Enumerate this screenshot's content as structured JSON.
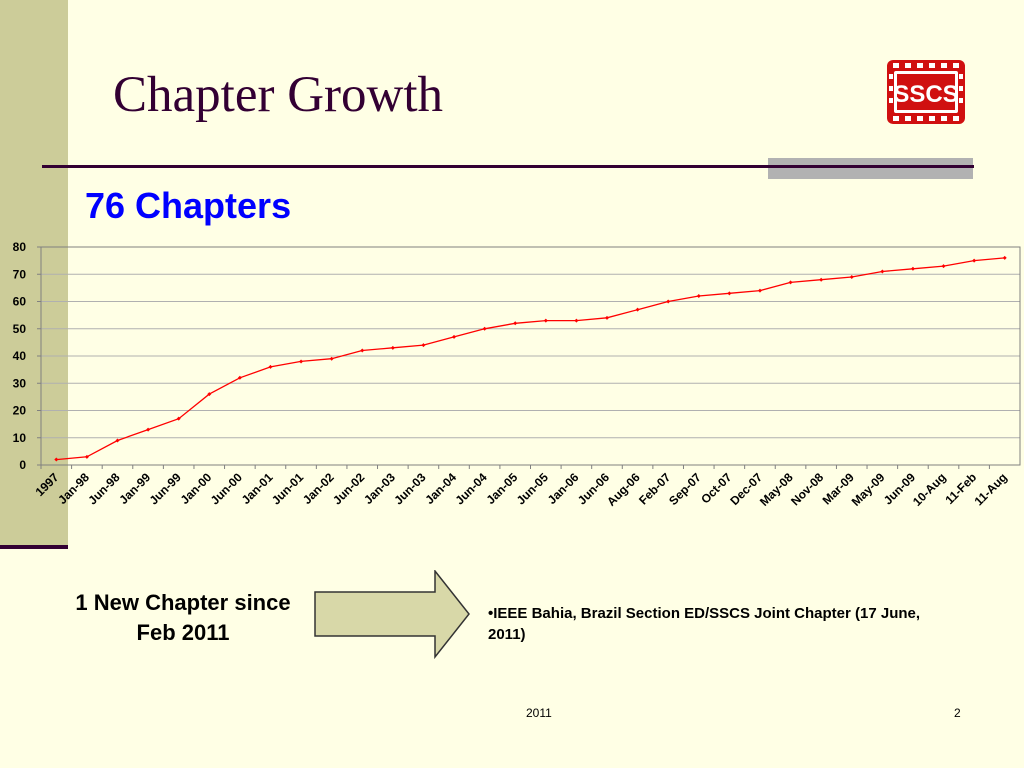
{
  "slide": {
    "title": "Chapter Growth",
    "subtitle": "76 Chapters",
    "logo_text": "SSCS",
    "note_left": "1 New Chapter since Feb 2011",
    "note_right": "•IEEE  Bahia, Brazil Section ED/SSCS Joint Chapter (17 June, 2011)",
    "footer_year": "2011",
    "footer_page": "2"
  },
  "colors": {
    "title": "#330033",
    "subtitle": "#0000ff",
    "sidebar": "#cccc99",
    "series_line": "#ff0000",
    "logo": "#d01010",
    "arrow_fill": "#d8d8a8"
  },
  "chart_data": {
    "type": "line",
    "title": "",
    "xlabel": "",
    "ylabel": "",
    "ylim": [
      0,
      80
    ],
    "yticks": [
      0,
      10,
      20,
      30,
      40,
      50,
      60,
      70,
      80
    ],
    "grid": true,
    "legend": "none",
    "categories": [
      "1997",
      "Jan-98",
      "Jun-98",
      "Jan-99",
      "Jun-99",
      "Jan-00",
      "Jun-00",
      "Jan-01",
      "Jun-01",
      "Jan-02",
      "Jun-02",
      "Jan-03",
      "Jun-03",
      "Jan-04",
      "Jun-04",
      "Jan-05",
      "Jun-05",
      "Jan-06",
      "Jun-06",
      "Aug-06",
      "Feb-07",
      "Sep-07",
      "Oct-07",
      "Dec-07",
      "May-08",
      "Nov-08",
      "Mar-09",
      "May-09",
      "Jun-09",
      "10-Aug",
      "11-Feb",
      "11-Aug"
    ],
    "series": [
      {
        "values": [
          2,
          3,
          9,
          13,
          17,
          26,
          32,
          36,
          38,
          39,
          42,
          43,
          44,
          47,
          50,
          52,
          53,
          53,
          54,
          57,
          60,
          62,
          63,
          64,
          67,
          68,
          69,
          71,
          72,
          73,
          75,
          76
        ]
      }
    ]
  }
}
